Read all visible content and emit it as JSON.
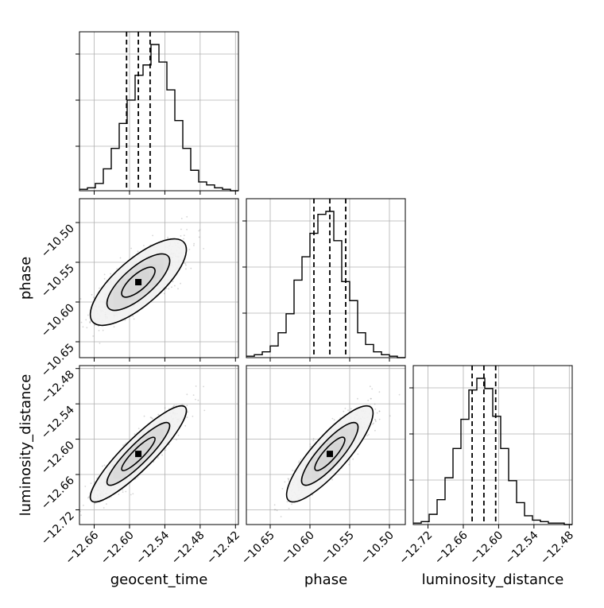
{
  "chart_data": {
    "type": "corner",
    "parameters": [
      "geocent_time",
      "phase",
      "luminosity_distance"
    ],
    "grid": "on",
    "colors": {
      "line": "#000000",
      "grid": "#b0b0b0",
      "fill_dark": "#000000",
      "fill_light": "#f2f2f2",
      "points": "#888888"
    },
    "diagonal": [
      {
        "param": "geocent_time",
        "xlim": [
          -12.685,
          -12.415
        ],
        "ticks": [
          -12.66,
          -12.6,
          -12.54,
          -12.48,
          -12.42
        ],
        "tick_labels": [
          "-12.66",
          "-12.60",
          "-12.54",
          "-12.48",
          "-12.42"
        ],
        "quantiles": [
          -12.605,
          -12.585,
          -12.565
        ],
        "hist_bins": {
          "edges": [
            -12.685,
            -12.6715,
            -12.658,
            -12.6445,
            -12.631,
            -12.6175,
            -12.604,
            -12.5905,
            -12.577,
            -12.5635,
            -12.55,
            -12.5365,
            -12.523,
            -12.5095,
            -12.496,
            -12.4825,
            -12.469,
            -12.4555,
            -12.442,
            -12.4285,
            -12.415
          ],
          "values": [
            0.01,
            0.02,
            0.05,
            0.15,
            0.29,
            0.46,
            0.62,
            0.79,
            0.86,
            1.0,
            0.88,
            0.69,
            0.48,
            0.29,
            0.14,
            0.06,
            0.04,
            0.02,
            0.01,
            0.0
          ]
        }
      },
      {
        "param": "phase",
        "xlim": [
          -10.68,
          -10.48
        ],
        "ticks": [
          -10.65,
          -10.6,
          -10.55,
          -10.5
        ],
        "tick_labels": [
          "-10.65",
          "-10.60",
          "-10.55",
          "-10.50"
        ],
        "quantiles": [
          -10.595,
          -10.575,
          -10.555
        ],
        "hist_bins": {
          "edges": [
            -10.68,
            -10.67,
            -10.66,
            -10.65,
            -10.64,
            -10.63,
            -10.62,
            -10.61,
            -10.6,
            -10.59,
            -10.58,
            -10.57,
            -10.56,
            -10.55,
            -10.54,
            -10.53,
            -10.52,
            -10.51,
            -10.5,
            -10.49,
            -10.48
          ],
          "values": [
            0.01,
            0.02,
            0.04,
            0.08,
            0.17,
            0.3,
            0.53,
            0.69,
            0.85,
            0.98,
            1.0,
            0.8,
            0.52,
            0.39,
            0.17,
            0.09,
            0.04,
            0.02,
            0.01,
            0.0
          ]
        }
      },
      {
        "param": "luminosity_distance",
        "xlim": [
          -12.745,
          -12.475
        ],
        "ticks": [
          -12.72,
          -12.66,
          -12.6,
          -12.54,
          -12.48
        ],
        "tick_labels": [
          "-12.72",
          "-12.66",
          "-12.60",
          "-12.54",
          "-12.48"
        ],
        "quantiles": [
          -12.645,
          -12.625,
          -12.605
        ],
        "hist_bins": {
          "edges": [
            -12.745,
            -12.7315,
            -12.718,
            -12.7045,
            -12.691,
            -12.6775,
            -12.664,
            -12.6505,
            -12.637,
            -12.6235,
            -12.61,
            -12.5965,
            -12.583,
            -12.5695,
            -12.556,
            -12.5425,
            -12.529,
            -12.5155,
            -12.502,
            -12.4885,
            -12.475
          ],
          "values": [
            0.01,
            0.02,
            0.07,
            0.17,
            0.32,
            0.52,
            0.72,
            0.92,
            1.0,
            0.93,
            0.74,
            0.52,
            0.3,
            0.15,
            0.06,
            0.03,
            0.02,
            0.01,
            0.01,
            0.0
          ]
        }
      }
    ],
    "pairs": [
      {
        "x": "geocent_time",
        "y": "phase",
        "xlim": [
          -12.685,
          -12.415
        ],
        "ylim": [
          -10.67,
          -10.47
        ],
        "yticks": [
          -10.5,
          -10.55,
          -10.6,
          -10.65
        ],
        "ytick_labels": [
          "-10.50",
          "-10.55",
          "-10.60",
          "-10.65"
        ],
        "mean": [
          -12.585,
          -10.575
        ],
        "sd": [
          0.0333,
          0.0222
        ],
        "corr": 0.75
      },
      {
        "x": "geocent_time",
        "y": "luminosity_distance",
        "xlim": [
          -12.685,
          -12.415
        ],
        "ylim": [
          -12.745,
          -12.475
        ],
        "yticks": [
          -12.48,
          -12.54,
          -12.6,
          -12.66,
          -12.72
        ],
        "ytick_labels": [
          "-12.48",
          "-12.54",
          "-12.60",
          "-12.66",
          "-12.72"
        ],
        "mean": [
          -12.585,
          -12.625
        ],
        "sd": [
          0.0333,
          0.0333
        ],
        "corr": 0.9
      },
      {
        "x": "phase",
        "y": "luminosity_distance",
        "xlim": [
          -10.68,
          -10.48
        ],
        "ylim": [
          -12.745,
          -12.475
        ],
        "mean": [
          -10.575,
          -12.625
        ],
        "sd": [
          0.0222,
          0.0333
        ],
        "corr": 0.85
      }
    ],
    "axis_labels": {
      "x": [
        "geocent_time",
        "phase",
        "luminosity_distance"
      ],
      "y": [
        "phase",
        "luminosity_distance"
      ]
    }
  }
}
